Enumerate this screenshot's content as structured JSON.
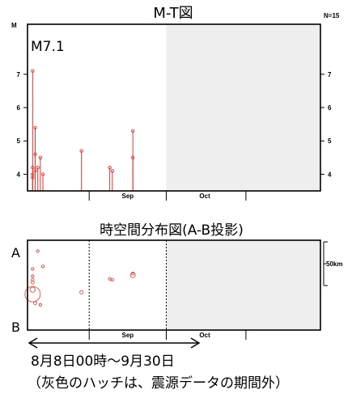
{
  "chart_data": [
    {
      "type": "scatter",
      "title": "M-T図",
      "count_label": "N=15",
      "ylabel": "M",
      "ylim": [
        3.5,
        8.5
      ],
      "y_ticks": [
        "4",
        "5",
        "6",
        "7"
      ],
      "x_month_labels": [
        "Sep",
        "Oct"
      ],
      "xlim": [
        "2020-08-08",
        "2020-11-30"
      ],
      "hatched_range": [
        "2020-10-01",
        "2020-11-30"
      ],
      "annotation": "M7.1",
      "points": [
        {
          "x": "2020-08-10",
          "y": 7.1
        },
        {
          "x": "2020-08-10",
          "y": 4.2
        },
        {
          "x": "2020-08-10",
          "y": 3.9
        },
        {
          "x": "2020-08-11",
          "y": 5.4
        },
        {
          "x": "2020-08-11",
          "y": 4.6
        },
        {
          "x": "2020-08-11",
          "y": 4.1
        },
        {
          "x": "2020-08-12",
          "y": 4.2
        },
        {
          "x": "2020-08-13",
          "y": 4.5
        },
        {
          "x": "2020-08-14",
          "y": 4.0
        },
        {
          "x": "2020-08-29",
          "y": 4.7
        },
        {
          "x": "2020-09-09",
          "y": 4.2
        },
        {
          "x": "2020-09-10",
          "y": 4.1
        },
        {
          "x": "2020-09-18",
          "y": 5.3
        },
        {
          "x": "2020-09-18",
          "y": 4.5
        },
        {
          "x": "2020-08-10",
          "y": 4.0
        }
      ]
    },
    {
      "type": "scatter",
      "title": "時空間分布図(A-B投影)",
      "top_label": "A",
      "bottom_label": "B",
      "scale_label": "50km",
      "x_month_labels": [
        "Sep",
        "Oct"
      ],
      "xlim": [
        "2020-08-08",
        "2020-11-30"
      ],
      "hatched_range": [
        "2020-10-01",
        "2020-11-30"
      ],
      "ylim": [
        0,
        100
      ],
      "points": [
        {
          "x": "2020-08-10",
          "y": 60,
          "m": 4.2
        },
        {
          "x": "2020-08-10",
          "y": 56,
          "m": 4.4
        },
        {
          "x": "2020-08-10",
          "y": 53,
          "m": 4.6
        },
        {
          "x": "2020-08-10",
          "y": 45,
          "m": 5.4
        },
        {
          "x": "2020-08-10",
          "y": 40,
          "m": 7.1
        },
        {
          "x": "2020-08-11",
          "y": 30,
          "m": 4.6
        },
        {
          "x": "2020-08-12",
          "y": 88,
          "m": 4.1
        },
        {
          "x": "2020-08-13",
          "y": 28,
          "m": 4.0
        },
        {
          "x": "2020-08-14",
          "y": 71,
          "m": 4.0
        },
        {
          "x": "2020-08-10",
          "y": 68,
          "m": 4.0
        },
        {
          "x": "2020-08-29",
          "y": 42,
          "m": 4.7
        },
        {
          "x": "2020-09-09",
          "y": 57,
          "m": 4.2
        },
        {
          "x": "2020-09-10",
          "y": 56,
          "m": 4.1
        },
        {
          "x": "2020-09-18",
          "y": 61,
          "m": 5.3
        },
        {
          "x": "2020-09-18",
          "y": 63,
          "m": 4.5
        }
      ]
    }
  ],
  "period_label": "8月8日00時～9月30日",
  "note": "（灰色のハッチは、震源データの期間外）",
  "colors": {
    "event": "#e8352e",
    "hatch": "#eeeeee",
    "axis": "#000000"
  }
}
